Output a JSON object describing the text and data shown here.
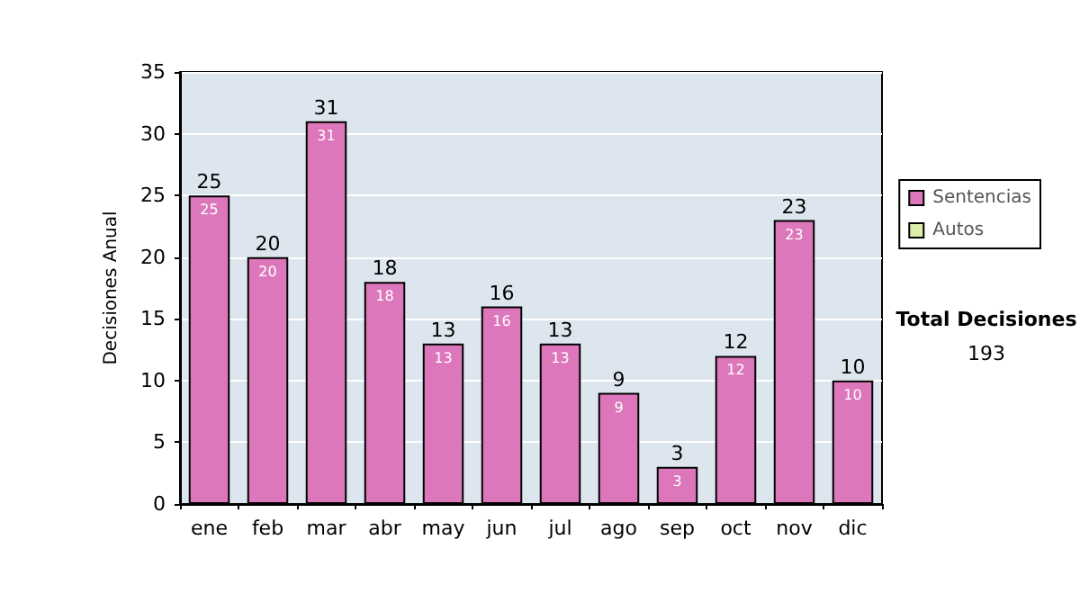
{
  "chart_data": {
    "type": "bar",
    "ylabel": "Decisiones Anual",
    "categories": [
      "ene",
      "feb",
      "mar",
      "abr",
      "may",
      "jun",
      "jul",
      "ago",
      "sep",
      "oct",
      "nov",
      "dic"
    ],
    "series": [
      {
        "name": "Sentencias",
        "color": "#dd77bb",
        "values": [
          25,
          20,
          31,
          18,
          13,
          16,
          13,
          9,
          3,
          12,
          23,
          10
        ]
      },
      {
        "name": "Autos",
        "color": "#ddeeaa",
        "values": [
          null,
          null,
          null,
          null,
          null,
          null,
          null,
          null,
          null,
          null,
          null,
          null
        ]
      }
    ],
    "stacked": true,
    "totals": [
      "25",
      "20",
      "31",
      "18",
      "13",
      "16",
      "13",
      "9",
      "3",
      "12",
      "23",
      "10"
    ],
    "ylim": [
      0,
      35
    ],
    "yticks": [
      0,
      5,
      10,
      15,
      20,
      25,
      30,
      35
    ],
    "grid": "y",
    "legend": "right",
    "data_labels": true,
    "annotations": [
      "Total Decisiones",
      "193"
    ]
  }
}
